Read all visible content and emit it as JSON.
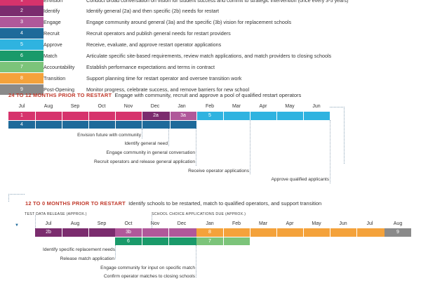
{
  "legend": [
    {
      "num": "1",
      "category": "Envision",
      "description": "Conduct broad conversation on vision for student success and commit to strategic intervention (once every 3-5 years)",
      "color": "#d6336c"
    },
    {
      "num": "2",
      "category": "Identify",
      "description": "Identify general (2a) and then specific (2b) needs for restart",
      "color": "#7b2c6e"
    },
    {
      "num": "3",
      "category": "Engage",
      "description": "Engage community around general (3a) and the specific (3b) vision for replacement schools",
      "color": "#b0589a"
    },
    {
      "num": "4",
      "category": "Recruit",
      "description": "Recruit operators and publish general needs for restart providers",
      "color": "#1e6a9a"
    },
    {
      "num": "5",
      "category": "Approve",
      "description": "Receive, evaluate, and approve restart operator applications",
      "color": "#2fb3e0"
    },
    {
      "num": "6",
      "category": "Match",
      "description": "Articulate specific site-based requirements, review match applications, and match providers to closing schools",
      "color": "#1a9a6a"
    },
    {
      "num": "7",
      "category": "Accountability",
      "description": "Establish performance expectations and terms in contract",
      "color": "#7cc47a"
    },
    {
      "num": "8",
      "category": "Transition",
      "description": "Support planning time for restart operator and oversee transition work",
      "color": "#f4a23b"
    },
    {
      "num": "9",
      "category": "Post-Opening",
      "description": "Monitor progress, celebrate success, and remove barriers for new school",
      "color": "#8a8a8a"
    }
  ],
  "section1": {
    "title": "24 TO 12 MONTHS PRIOR TO RESTART",
    "subtitle": "Engage with community, recruit and approve a pool of qualified restart operators",
    "months": [
      "Jul",
      "Aug",
      "Sep",
      "Oct",
      "Nov",
      "Dec",
      "Jan",
      "Feb",
      "Mar",
      "Apr",
      "May",
      "Jun"
    ],
    "bar1": [
      {
        "label": "1",
        "color": "#d6336c"
      },
      {
        "label": "2a",
        "color": "#7b2c6e"
      },
      {
        "label": "3a",
        "color": "#b0589a"
      },
      {
        "label": "5",
        "color": "#2fb3e0"
      }
    ],
    "bar2": [
      {
        "label": "4",
        "color": "#1e6a9a"
      }
    ],
    "notes": [
      "Envision future with community",
      "Identify general need",
      "Engage community in general conversation",
      "Recruit operators and release general application",
      "Receive operator applications",
      "Approve qualified applicants"
    ]
  },
  "section2": {
    "title": "12 TO 0 MONTHS PRIOR TO RESTART",
    "subtitle": "Identify schools to be restarted, match to qualified operators, and support transition",
    "caption_left": "TEST DATA RELEASE (APPROX.)",
    "caption_right": "SCHOOL CHOICE APPLICATIONS DUE (APPROX.)",
    "months": [
      "Jul",
      "Aug",
      "Sep",
      "Oct",
      "Nov",
      "Dec",
      "Jan",
      "Feb",
      "Mar",
      "Apr",
      "May",
      "Jun",
      "Jul",
      "Aug"
    ],
    "bar1": [
      {
        "label": "2b",
        "color": "#7b2c6e"
      },
      {
        "label": "3b",
        "color": "#b0589a"
      },
      {
        "label": "8",
        "color": "#f4a23b"
      },
      {
        "label": "9",
        "color": "#8a8a8a"
      }
    ],
    "bar2": [
      {
        "label": "6",
        "color": "#1a9a6a"
      },
      {
        "label": "7",
        "color": "#7cc47a"
      }
    ],
    "notes": [
      "Identify specific replacement needs",
      "Release match application",
      "Engage community for input on specific match",
      "Confirm operator matches to closing schools"
    ]
  }
}
